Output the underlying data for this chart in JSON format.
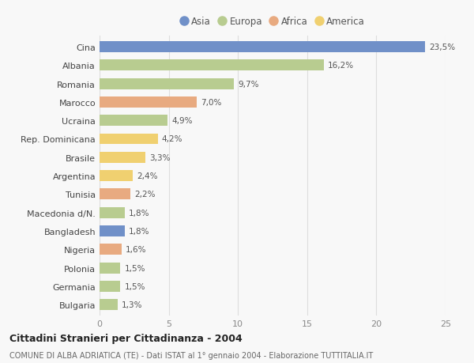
{
  "countries": [
    "Cina",
    "Albania",
    "Romania",
    "Marocco",
    "Ucraina",
    "Rep. Dominicana",
    "Brasile",
    "Argentina",
    "Tunisia",
    "Macedonia d/N.",
    "Bangladesh",
    "Nigeria",
    "Polonia",
    "Germania",
    "Bulgaria"
  ],
  "values": [
    23.5,
    16.2,
    9.7,
    7.0,
    4.9,
    4.2,
    3.3,
    2.4,
    2.2,
    1.8,
    1.8,
    1.6,
    1.5,
    1.5,
    1.3
  ],
  "labels": [
    "23,5%",
    "16,2%",
    "9,7%",
    "7,0%",
    "4,9%",
    "4,2%",
    "3,3%",
    "2,4%",
    "2,2%",
    "1,8%",
    "1,8%",
    "1,6%",
    "1,5%",
    "1,5%",
    "1,3%"
  ],
  "bar_colors": [
    "#7090c8",
    "#b8cc90",
    "#b8cc90",
    "#e8aa80",
    "#b8cc90",
    "#f0d070",
    "#f0d070",
    "#f0d070",
    "#e8aa80",
    "#b8cc90",
    "#7090c8",
    "#e8aa80",
    "#b8cc90",
    "#b8cc90",
    "#b8cc90"
  ],
  "title": "Cittadini Stranieri per Cittadinanza - 2004",
  "subtitle": "COMUNE DI ALBA ADRIATICA (TE) - Dati ISTAT al 1° gennaio 2004 - Elaborazione TUTTITALIA.IT",
  "xlim": [
    0,
    25
  ],
  "xticks": [
    0,
    5,
    10,
    15,
    20,
    25
  ],
  "background_color": "#f8f8f8",
  "legend_labels": [
    "Asia",
    "Europa",
    "Africa",
    "America"
  ],
  "legend_colors": [
    "#7090c8",
    "#b8cc90",
    "#e8aa80",
    "#f0d070"
  ]
}
